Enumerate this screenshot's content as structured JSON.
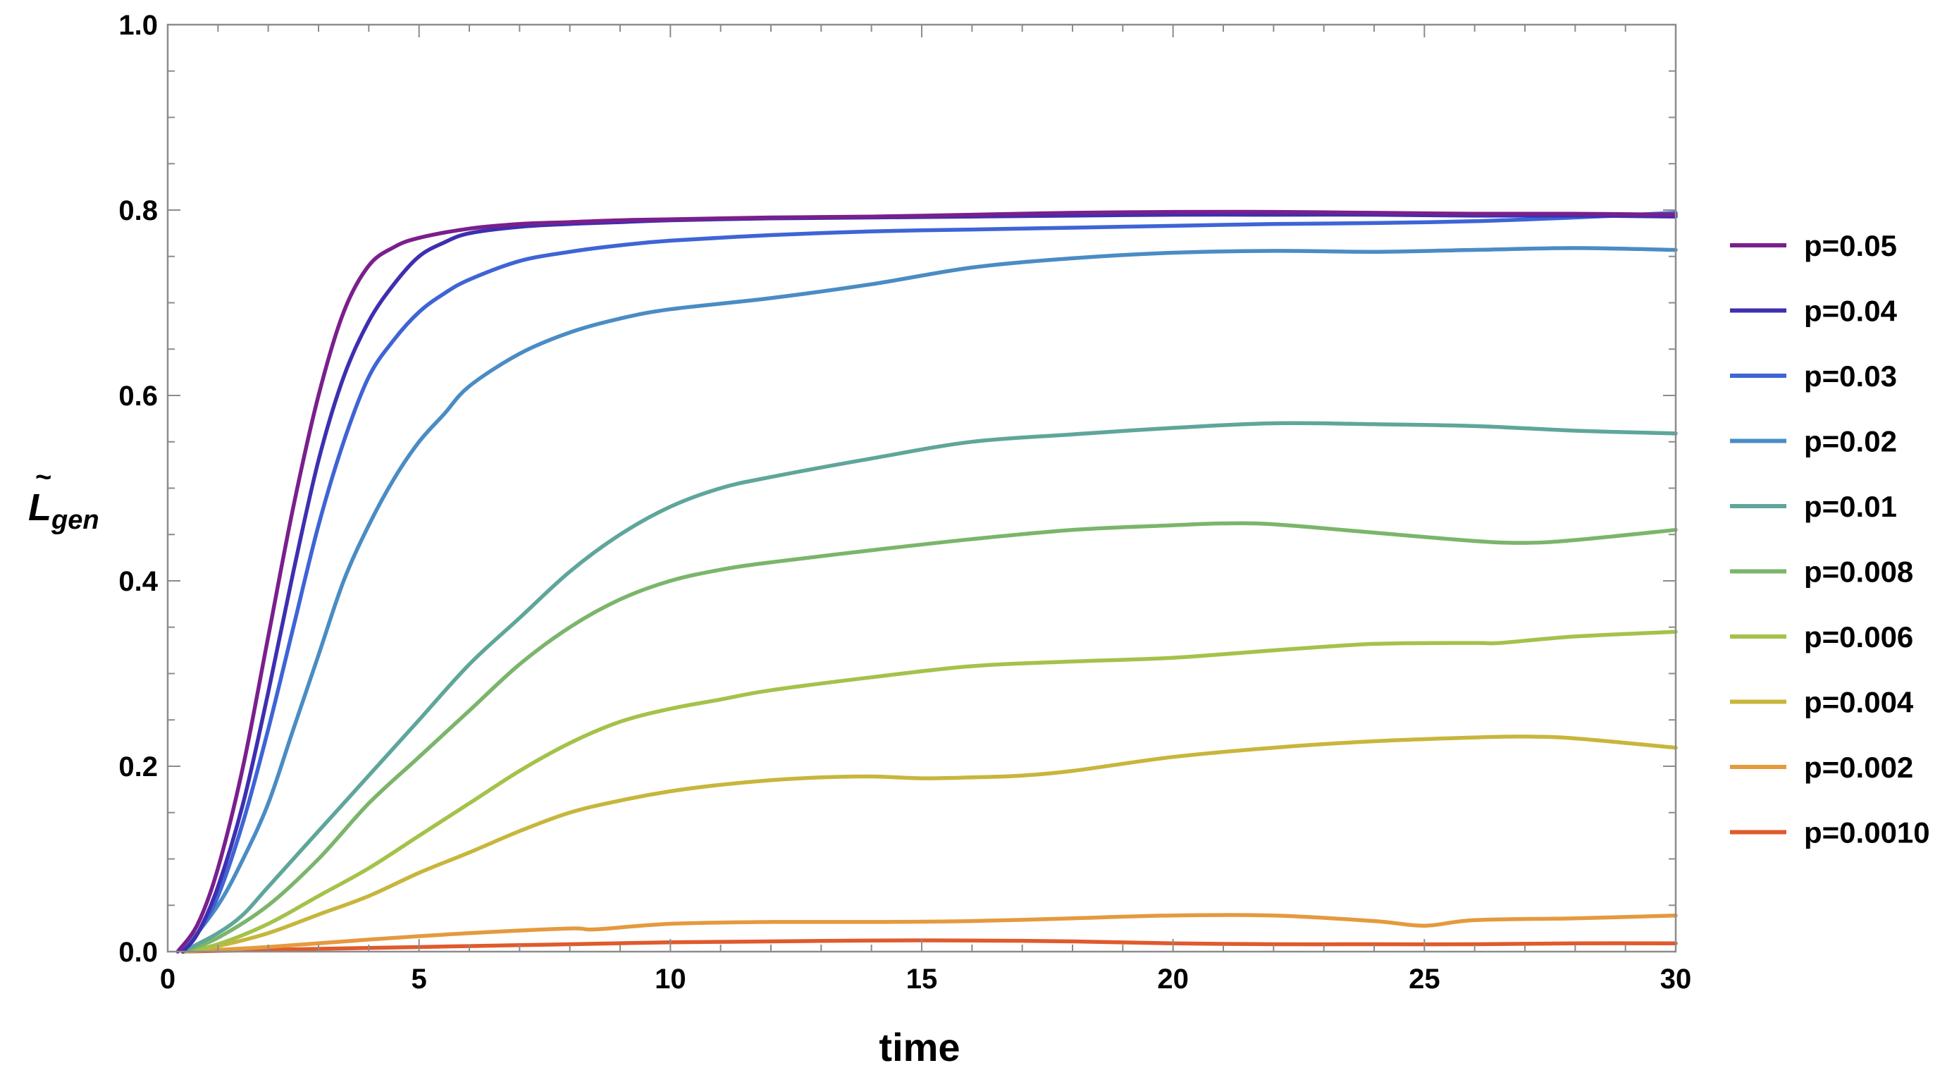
{
  "chart_data": {
    "type": "line",
    "title": "",
    "xlabel": "time",
    "ylabel": {
      "base": "L",
      "accent": "~",
      "subscript": "gen"
    },
    "xlim": [
      0,
      30
    ],
    "ylim": [
      0,
      1.0
    ],
    "x_ticks": [
      0,
      5,
      10,
      15,
      20,
      25,
      30
    ],
    "x_tick_labels": [
      "0",
      "5",
      "10",
      "15",
      "20",
      "25",
      "30"
    ],
    "y_ticks": [
      0.0,
      0.2,
      0.4,
      0.6,
      0.8,
      1.0
    ],
    "y_tick_labels": [
      "0.0",
      "0.2",
      "0.4",
      "0.6",
      "0.8",
      "1.0"
    ],
    "grid": false,
    "legend_position": "right",
    "series": [
      {
        "name": "p=0.05",
        "color": "#7a1f8c",
        "x": [
          0.2,
          0.6,
          1,
          1.5,
          2,
          2.5,
          3,
          3.5,
          4,
          4.5,
          5,
          6,
          7,
          8,
          9,
          10,
          12,
          14,
          16,
          18,
          20,
          22,
          24,
          26,
          28,
          30
        ],
        "y": [
          0,
          0.03,
          0.09,
          0.2,
          0.34,
          0.48,
          0.6,
          0.69,
          0.74,
          0.76,
          0.77,
          0.78,
          0.785,
          0.787,
          0.789,
          0.79,
          0.792,
          0.793,
          0.795,
          0.797,
          0.798,
          0.798,
          0.797,
          0.796,
          0.796,
          0.795
        ]
      },
      {
        "name": "p=0.04",
        "color": "#3e2fb0",
        "x": [
          0.3,
          0.6,
          1,
          1.5,
          2,
          2.5,
          3,
          3.5,
          4,
          4.5,
          5,
          5.5,
          6,
          7,
          8,
          9,
          10,
          12,
          14,
          16,
          18,
          20,
          22,
          24,
          26,
          28,
          30
        ],
        "y": [
          0,
          0.02,
          0.07,
          0.16,
          0.28,
          0.41,
          0.53,
          0.62,
          0.68,
          0.72,
          0.75,
          0.765,
          0.775,
          0.782,
          0.785,
          0.787,
          0.789,
          0.791,
          0.792,
          0.793,
          0.794,
          0.795,
          0.795,
          0.795,
          0.794,
          0.794,
          0.793
        ]
      },
      {
        "name": "p=0.03",
        "color": "#3e64d6",
        "x": [
          0.3,
          0.6,
          1,
          1.5,
          2,
          2.5,
          3,
          3.5,
          4,
          4.5,
          5,
          5.5,
          6,
          7,
          8,
          9,
          10,
          12,
          14,
          16,
          18,
          20,
          22,
          24,
          26,
          28,
          30
        ],
        "y": [
          0,
          0.02,
          0.06,
          0.14,
          0.24,
          0.35,
          0.46,
          0.55,
          0.62,
          0.66,
          0.69,
          0.71,
          0.725,
          0.745,
          0.755,
          0.762,
          0.767,
          0.773,
          0.777,
          0.779,
          0.781,
          0.783,
          0.785,
          0.786,
          0.788,
          0.792,
          0.797
        ]
      },
      {
        "name": "p=0.02",
        "color": "#4a8cc4",
        "x": [
          0.3,
          1,
          1.5,
          2,
          2.5,
          3,
          3.5,
          4,
          4.5,
          5,
          5.5,
          6,
          7,
          8,
          9,
          10,
          12,
          14,
          16,
          18,
          20,
          22,
          24,
          26,
          28,
          30
        ],
        "y": [
          0,
          0.05,
          0.1,
          0.16,
          0.24,
          0.32,
          0.4,
          0.46,
          0.51,
          0.55,
          0.58,
          0.61,
          0.645,
          0.668,
          0.683,
          0.693,
          0.705,
          0.72,
          0.738,
          0.748,
          0.754,
          0.756,
          0.755,
          0.757,
          0.759,
          0.757
        ]
      },
      {
        "name": "p=0.01",
        "color": "#5fa69a",
        "x": [
          0.3,
          1,
          1.5,
          2,
          3,
          4,
          5,
          6,
          7,
          8,
          9,
          10,
          11,
          12,
          14,
          16,
          18,
          20,
          22,
          24,
          26,
          28,
          30
        ],
        "y": [
          0,
          0.02,
          0.04,
          0.07,
          0.13,
          0.19,
          0.25,
          0.31,
          0.36,
          0.41,
          0.45,
          0.48,
          0.5,
          0.512,
          0.532,
          0.55,
          0.558,
          0.565,
          0.57,
          0.569,
          0.567,
          0.562,
          0.559
        ]
      },
      {
        "name": "p=0.008",
        "color": "#7bb56b",
        "x": [
          0.3,
          1,
          2,
          3,
          4,
          5,
          6,
          7,
          8,
          9,
          10,
          11,
          12,
          14,
          16,
          18,
          20,
          21,
          22,
          24,
          26,
          27,
          28,
          30
        ],
        "y": [
          0,
          0.015,
          0.05,
          0.1,
          0.16,
          0.21,
          0.26,
          0.31,
          0.35,
          0.38,
          0.4,
          0.412,
          0.42,
          0.433,
          0.445,
          0.455,
          0.46,
          0.462,
          0.461,
          0.452,
          0.443,
          0.441,
          0.444,
          0.455
        ]
      },
      {
        "name": "p=0.006",
        "color": "#a4c24a",
        "x": [
          0.3,
          1,
          2,
          3,
          4,
          5,
          6,
          7,
          8,
          9,
          10,
          11,
          12,
          14,
          16,
          18,
          20,
          22,
          24,
          26,
          26.5,
          28,
          30
        ],
        "y": [
          0,
          0.008,
          0.03,
          0.06,
          0.09,
          0.125,
          0.16,
          0.195,
          0.225,
          0.248,
          0.262,
          0.272,
          0.282,
          0.296,
          0.308,
          0.313,
          0.317,
          0.325,
          0.332,
          0.333,
          0.333,
          0.34,
          0.345
        ]
      },
      {
        "name": "p=0.004",
        "color": "#c7b63c",
        "x": [
          0.3,
          1,
          2,
          3,
          4,
          5,
          6,
          7,
          8,
          9,
          10,
          11,
          12,
          13,
          14,
          15,
          16,
          17,
          18,
          20,
          22,
          24,
          26,
          27,
          28,
          30
        ],
        "y": [
          0,
          0.006,
          0.02,
          0.04,
          0.06,
          0.085,
          0.107,
          0.13,
          0.15,
          0.163,
          0.173,
          0.18,
          0.185,
          0.188,
          0.189,
          0.187,
          0.188,
          0.19,
          0.195,
          0.21,
          0.22,
          0.227,
          0.231,
          0.232,
          0.23,
          0.22
        ]
      },
      {
        "name": "p=0.002",
        "color": "#e59a3e",
        "x": [
          0.3,
          2,
          4,
          6,
          8,
          8.5,
          10,
          12,
          14,
          16,
          18,
          20,
          22,
          24,
          25,
          26,
          28,
          30
        ],
        "y": [
          0,
          0.005,
          0.013,
          0.02,
          0.025,
          0.024,
          0.03,
          0.032,
          0.032,
          0.033,
          0.036,
          0.039,
          0.039,
          0.033,
          0.028,
          0.034,
          0.036,
          0.039
        ]
      },
      {
        "name": "p=0.0010",
        "color": "#e05a2c",
        "x": [
          0.3,
          2,
          4,
          6,
          8,
          10,
          12,
          14,
          16,
          18,
          20,
          22,
          24,
          26,
          28,
          30
        ],
        "y": [
          0,
          0.002,
          0.004,
          0.006,
          0.008,
          0.01,
          0.011,
          0.012,
          0.012,
          0.011,
          0.009,
          0.008,
          0.008,
          0.008,
          0.009,
          0.009
        ]
      }
    ]
  }
}
